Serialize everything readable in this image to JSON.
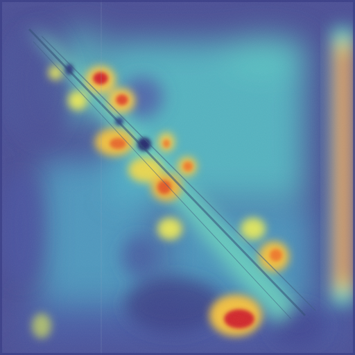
{
  "image": {
    "kind": "attention-heatmap-overlay",
    "colormap": "jet",
    "colors": {
      "background": "#4b4f96",
      "low": "#3a3f9a",
      "mid_low": "#3fa6c9",
      "mid": "#63d6c2",
      "mid_high": "#f0e060",
      "high": "#f08a2a",
      "peak": "#d2262a",
      "dark_spot": "#262a6e",
      "diagonal_stroke": "#2d4a73"
    }
  }
}
